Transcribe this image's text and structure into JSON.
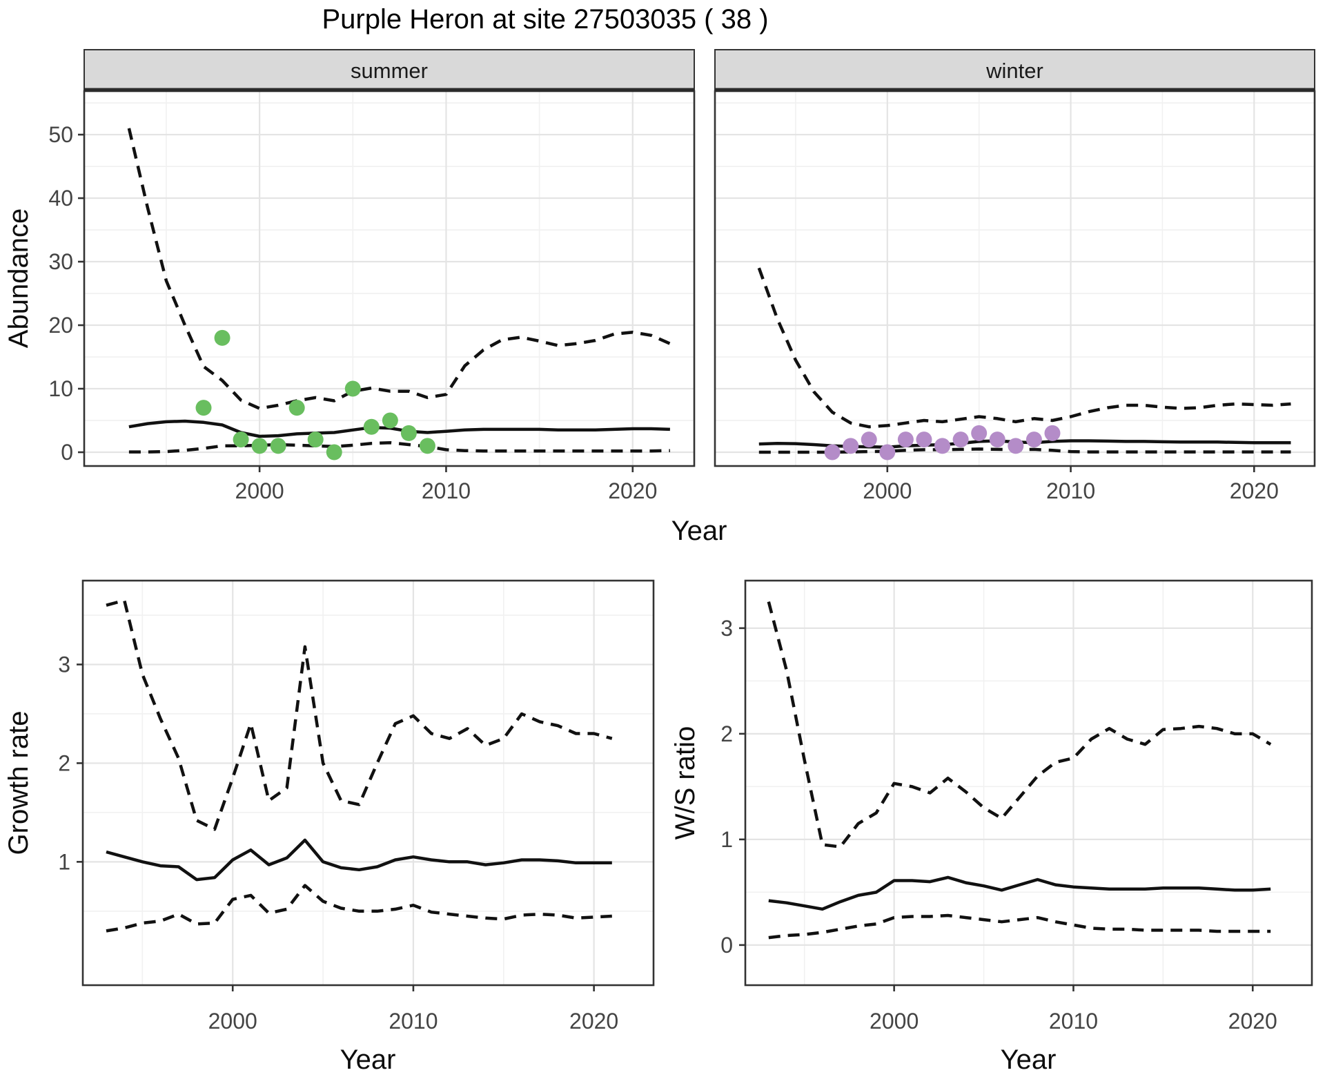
{
  "title": "Purple Heron at site 27503035 ( 38 )",
  "colors": {
    "fit_line": "#111111",
    "interval_line": "#111111",
    "summer_points": "#69be5f",
    "winter_points": "#b48cc8",
    "strip_bg": "#d9d9d9",
    "panel_border": "#333333",
    "grid_major": "#e4e4e4",
    "grid_minor": "#f1f1f1",
    "tick_mark": "#333333"
  },
  "chart_data": [
    {
      "id": "abundance",
      "type": "line",
      "xlabel": "Year",
      "ylabel": "Abundance",
      "legend_position": "none",
      "grid": true,
      "facets": [
        {
          "label": "summer",
          "xlim": [
            1990.6,
            2023.3
          ],
          "ylim": [
            -2.17,
            56.85
          ],
          "x_major": [
            2000,
            2010,
            2020
          ],
          "x_minor": [
            1995,
            2005,
            2015
          ],
          "y_major": [
            0,
            10,
            20,
            30,
            40,
            50
          ],
          "y_minor": [
            5,
            15,
            25,
            35,
            45,
            55
          ],
          "show_y_tick_labels": true,
          "x": [
            1993,
            1994,
            1995,
            1996,
            1997,
            1998,
            1999,
            2000,
            2001,
            2002,
            2003,
            2004,
            2005,
            2006,
            2007,
            2008,
            2009,
            2010,
            2011,
            2012,
            2013,
            2014,
            2015,
            2016,
            2017,
            2018,
            2019,
            2020,
            2021,
            2022
          ],
          "series": [
            {
              "name": "upper-credible",
              "style": "dashed",
              "values": [
                51,
                38.5,
                27,
                20,
                13.5,
                11.3,
                8.2,
                6.9,
                7.4,
                8.1,
                8.6,
                8.1,
                9.6,
                10.1,
                9.6,
                9.6,
                8.6,
                9.1,
                13.6,
                16.1,
                17.7,
                18.1,
                17.5,
                16.8,
                17.1,
                17.6,
                18.6,
                18.9,
                18.4,
                17.1
              ]
            },
            {
              "name": "median-fit",
              "style": "solid",
              "values": [
                4.0,
                4.5,
                4.8,
                4.9,
                4.7,
                4.3,
                3.1,
                2.5,
                2.6,
                2.9,
                3.0,
                3.1,
                3.5,
                3.9,
                3.8,
                3.3,
                3.1,
                3.3,
                3.5,
                3.6,
                3.6,
                3.6,
                3.6,
                3.5,
                3.5,
                3.5,
                3.6,
                3.7,
                3.7,
                3.6
              ]
            },
            {
              "name": "lower-credible",
              "style": "dashed",
              "values": [
                0.05,
                0.05,
                0.1,
                0.3,
                0.6,
                1.0,
                1.0,
                1.1,
                1.2,
                1.1,
                1.0,
                0.9,
                1.1,
                1.4,
                1.5,
                1.2,
                0.9,
                0.4,
                0.25,
                0.2,
                0.2,
                0.2,
                0.2,
                0.2,
                0.2,
                0.2,
                0.2,
                0.2,
                0.2,
                0.25
              ]
            }
          ],
          "points": {
            "name": "observed-counts-summer",
            "color": "#69be5f",
            "x": [
              1997,
              1998,
              1999,
              2000,
              2001,
              2002,
              2003,
              2004,
              2005,
              2006,
              2007,
              2008,
              2009
            ],
            "values": [
              7,
              18,
              2,
              1,
              1,
              7,
              2,
              0,
              10,
              4,
              5,
              3,
              1
            ]
          }
        },
        {
          "label": "winter",
          "xlim": [
            1990.6,
            2023.3
          ],
          "ylim": [
            -2.17,
            56.85
          ],
          "x_major": [
            2000,
            2010,
            2020
          ],
          "x_minor": [
            1995,
            2005,
            2015
          ],
          "y_major": [
            0,
            10,
            20,
            30,
            40,
            50
          ],
          "y_minor": [
            5,
            15,
            25,
            35,
            45,
            55
          ],
          "show_y_tick_labels": false,
          "x": [
            1993,
            1994,
            1995,
            1996,
            1997,
            1998,
            1999,
            2000,
            2001,
            2002,
            2003,
            2004,
            2005,
            2006,
            2007,
            2008,
            2009,
            2010,
            2011,
            2012,
            2013,
            2014,
            2015,
            2016,
            2017,
            2018,
            2019,
            2020,
            2021,
            2022
          ],
          "series": [
            {
              "name": "upper-credible",
              "style": "dashed",
              "values": [
                29,
                21,
                14.5,
                9.5,
                6.3,
                4.6,
                4.0,
                4.2,
                4.6,
                5.0,
                4.8,
                5.2,
                5.6,
                5.3,
                4.8,
                5.3,
                5.0,
                5.6,
                6.4,
                7.0,
                7.4,
                7.4,
                7.1,
                6.9,
                7.0,
                7.4,
                7.6,
                7.5,
                7.4,
                7.6
              ]
            },
            {
              "name": "median-fit",
              "style": "solid",
              "values": [
                1.3,
                1.4,
                1.35,
                1.2,
                1.0,
                0.9,
                0.85,
                0.8,
                1.0,
                1.1,
                1.2,
                1.4,
                1.7,
                1.8,
                1.6,
                1.5,
                1.7,
                1.8,
                1.8,
                1.75,
                1.7,
                1.7,
                1.65,
                1.6,
                1.6,
                1.6,
                1.55,
                1.5,
                1.5,
                1.5
              ]
            },
            {
              "name": "lower-credible",
              "style": "dashed",
              "values": [
                0,
                0,
                0,
                0,
                0,
                0.05,
                0.1,
                0.15,
                0.3,
                0.4,
                0.4,
                0.45,
                0.5,
                0.45,
                0.4,
                0.45,
                0.3,
                0.1,
                0.05,
                0.05,
                0.05,
                0.05,
                0.05,
                0.05,
                0.05,
                0.05,
                0.05,
                0.05,
                0.05,
                0.05
              ]
            }
          ],
          "points": {
            "name": "observed-counts-winter",
            "color": "#b48cc8",
            "x": [
              1997,
              1998,
              1999,
              2000,
              2001,
              2002,
              2003,
              2004,
              2005,
              2006,
              2007,
              2008,
              2009
            ],
            "values": [
              0,
              1,
              2,
              0,
              2,
              2,
              1,
              2,
              3,
              2,
              1,
              2,
              3
            ]
          }
        }
      ]
    },
    {
      "id": "growth-rate",
      "type": "line",
      "xlabel": "Year",
      "ylabel": "Growth rate",
      "legend_position": "none",
      "grid": true,
      "facets": [
        {
          "label": null,
          "xlim": [
            1991.7,
            2023.3
          ],
          "ylim": [
            -0.25,
            3.85
          ],
          "x_major": [
            2000,
            2010,
            2020
          ],
          "x_minor": [
            1995,
            2005,
            2015
          ],
          "y_major": [
            1,
            2,
            3
          ],
          "y_minor": [
            0.5,
            1.5,
            2.5,
            3.5
          ],
          "show_y_tick_labels": true,
          "x": [
            1993,
            1994,
            1995,
            1996,
            1997,
            1998,
            1999,
            2000,
            2001,
            2002,
            2003,
            2004,
            2005,
            2006,
            2007,
            2008,
            2009,
            2010,
            2011,
            2012,
            2013,
            2014,
            2015,
            2016,
            2017,
            2018,
            2019,
            2020,
            2021
          ],
          "series": [
            {
              "name": "upper-credible",
              "style": "dashed",
              "values": [
                3.6,
                3.65,
                2.9,
                2.45,
                2.05,
                1.42,
                1.33,
                1.85,
                2.4,
                1.62,
                1.75,
                3.18,
                2.0,
                1.62,
                1.58,
                2.0,
                2.4,
                2.48,
                2.3,
                2.25,
                2.35,
                2.18,
                2.25,
                2.5,
                2.42,
                2.38,
                2.3,
                2.3,
                2.25
              ]
            },
            {
              "name": "median-fit",
              "style": "solid",
              "values": [
                1.1,
                1.05,
                1.0,
                0.96,
                0.95,
                0.82,
                0.84,
                1.02,
                1.12,
                0.97,
                1.04,
                1.22,
                1.0,
                0.94,
                0.92,
                0.95,
                1.02,
                1.05,
                1.02,
                1.0,
                1.0,
                0.97,
                0.99,
                1.02,
                1.02,
                1.01,
                0.99,
                0.99,
                0.99
              ]
            },
            {
              "name": "lower-credible",
              "style": "dashed",
              "values": [
                0.3,
                0.33,
                0.38,
                0.4,
                0.47,
                0.37,
                0.38,
                0.62,
                0.66,
                0.48,
                0.52,
                0.76,
                0.6,
                0.53,
                0.5,
                0.5,
                0.52,
                0.56,
                0.49,
                0.47,
                0.45,
                0.43,
                0.42,
                0.46,
                0.47,
                0.46,
                0.43,
                0.44,
                0.45
              ]
            }
          ],
          "points": null
        }
      ]
    },
    {
      "id": "ws-ratio",
      "type": "line",
      "xlabel": "Year",
      "ylabel": "W/S ratio",
      "legend_position": "none",
      "grid": true,
      "facets": [
        {
          "label": null,
          "xlim": [
            1991.7,
            2023.3
          ],
          "ylim": [
            -0.38,
            3.45
          ],
          "x_major": [
            2000,
            2010,
            2020
          ],
          "x_minor": [
            1995,
            2005,
            2015
          ],
          "y_major": [
            0,
            1,
            2,
            3
          ],
          "y_minor": [
            0.5,
            1.5,
            2.5
          ],
          "show_y_tick_labels": true,
          "x": [
            1993,
            1994,
            1995,
            1996,
            1997,
            1998,
            1999,
            2000,
            2001,
            2002,
            2003,
            2004,
            2005,
            2006,
            2007,
            2008,
            2009,
            2010,
            2011,
            2012,
            2013,
            2014,
            2015,
            2016,
            2017,
            2018,
            2019,
            2020,
            2021
          ],
          "series": [
            {
              "name": "upper-credible",
              "style": "dashed",
              "values": [
                3.25,
                2.6,
                1.75,
                0.95,
                0.93,
                1.15,
                1.25,
                1.53,
                1.5,
                1.44,
                1.58,
                1.45,
                1.3,
                1.2,
                1.4,
                1.6,
                1.73,
                1.77,
                1.95,
                2.05,
                1.95,
                1.9,
                2.04,
                2.05,
                2.07,
                2.05,
                2.0,
                2.0,
                1.9
              ]
            },
            {
              "name": "median-fit",
              "style": "solid",
              "values": [
                0.42,
                0.4,
                0.37,
                0.34,
                0.41,
                0.47,
                0.5,
                0.61,
                0.61,
                0.6,
                0.64,
                0.59,
                0.56,
                0.52,
                0.57,
                0.62,
                0.57,
                0.55,
                0.54,
                0.53,
                0.53,
                0.53,
                0.54,
                0.54,
                0.54,
                0.53,
                0.52,
                0.52,
                0.53
              ]
            },
            {
              "name": "lower-credible",
              "style": "dashed",
              "values": [
                0.07,
                0.09,
                0.1,
                0.12,
                0.15,
                0.18,
                0.2,
                0.26,
                0.27,
                0.27,
                0.28,
                0.26,
                0.24,
                0.22,
                0.24,
                0.26,
                0.22,
                0.19,
                0.16,
                0.15,
                0.15,
                0.14,
                0.14,
                0.14,
                0.14,
                0.13,
                0.13,
                0.13,
                0.13
              ]
            }
          ],
          "points": null
        }
      ]
    }
  ]
}
